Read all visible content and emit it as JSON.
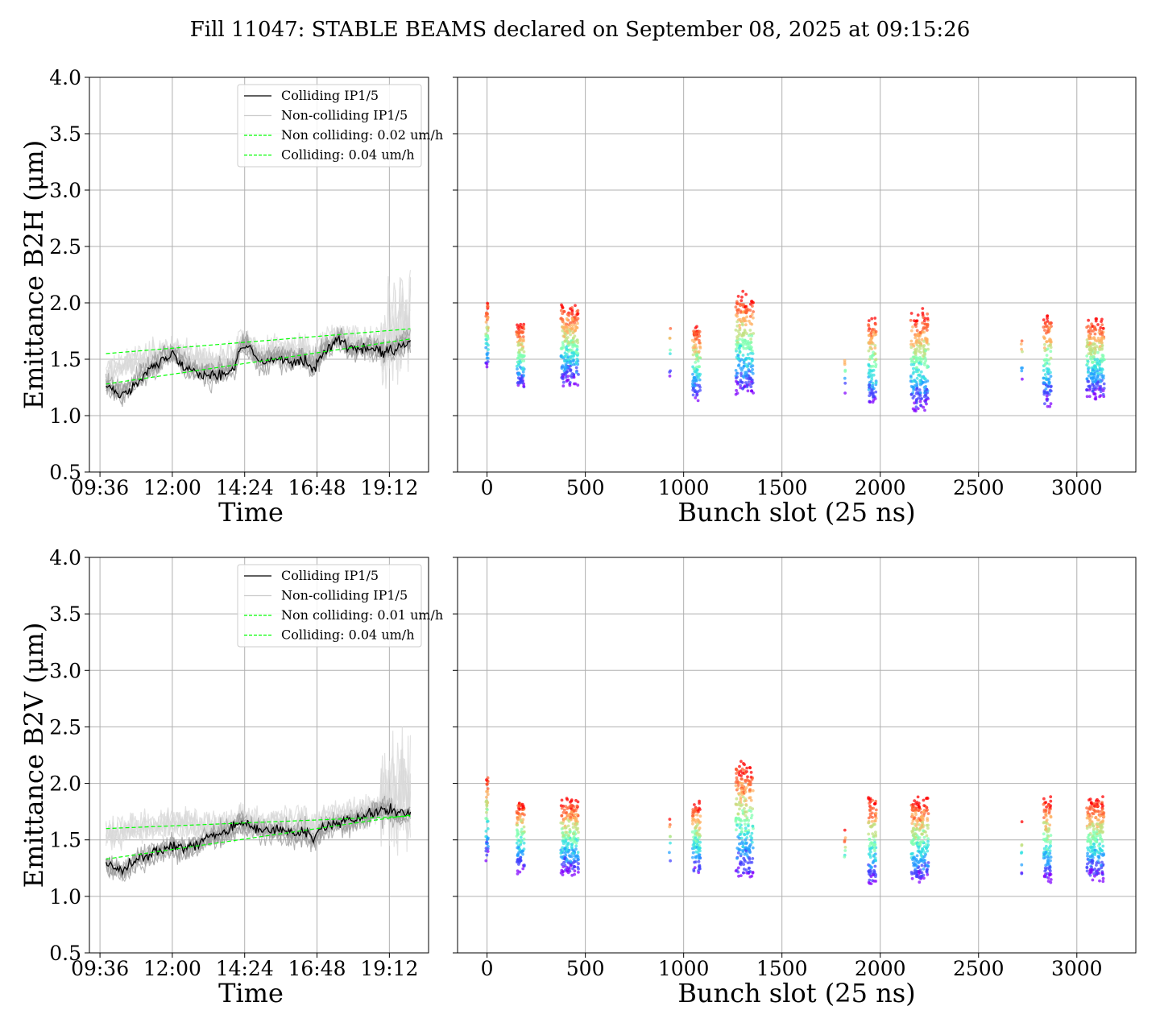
{
  "figure": {
    "title": "Fill 11047: STABLE BEAMS declared on September 08, 2025 at 09:15:26"
  },
  "colors": {
    "colliding": "#000000",
    "non_colliding": "#bbbbbb",
    "fit": "#00ff00",
    "grid": "#b0b0b0",
    "rainbow": [
      "#8000ff",
      "#4040ff",
      "#20a0ff",
      "#30e0e0",
      "#80ffb0",
      "#c0e080",
      "#ffb060",
      "#ff6030",
      "#ff0000"
    ]
  },
  "chart_data": [
    {
      "id": "b2h-time",
      "type": "line",
      "ylabel": "Emittance B2H (μm)",
      "xlabel": "Time",
      "ylim": [
        0.5,
        4.0
      ],
      "yticks": [
        "0.5",
        "1.0",
        "1.5",
        "2.0",
        "2.5",
        "3.0",
        "3.5",
        "4.0"
      ],
      "x_range_hours": [
        9.25,
        20.5
      ],
      "xticks": [
        {
          "label": "09:36",
          "hour": 9.6
        },
        {
          "label": "12:00",
          "hour": 12.0
        },
        {
          "label": "14:24",
          "hour": 14.4
        },
        {
          "label": "16:48",
          "hour": 16.8
        },
        {
          "label": "19:12",
          "hour": 19.2
        }
      ],
      "grid": true,
      "legend_position": "top-right",
      "legend": [
        {
          "label": "Colliding IP1/5",
          "style": "colliding"
        },
        {
          "label": "Non-colliding IP1/5",
          "style": "non_colliding"
        },
        {
          "label": "Non colliding: 0.02 um/h",
          "style": "fit"
        },
        {
          "label": "Colliding: 0.04 um/h",
          "style": "fit"
        }
      ],
      "time_hours": [
        9.8,
        10.3,
        11.0,
        11.5,
        12.0,
        12.5,
        13.0,
        13.5,
        14.0,
        14.3,
        14.6,
        15.0,
        15.5,
        16.0,
        16.3,
        16.7,
        17.0,
        17.5,
        18.0,
        18.5,
        19.0,
        19.5,
        19.9
      ],
      "colliding_median": [
        1.28,
        1.18,
        1.35,
        1.45,
        1.55,
        1.42,
        1.38,
        1.36,
        1.4,
        1.62,
        1.58,
        1.45,
        1.52,
        1.48,
        1.5,
        1.42,
        1.55,
        1.68,
        1.58,
        1.6,
        1.55,
        1.6,
        1.65
      ],
      "non_colliding_median": [
        1.4,
        1.45,
        1.5,
        1.55,
        1.58,
        1.55,
        1.5,
        1.48,
        1.52,
        1.68,
        1.62,
        1.55,
        1.6,
        1.58,
        1.6,
        1.55,
        1.65,
        1.72,
        1.68,
        1.65,
        1.65,
        1.8,
        1.9
      ],
      "fit_non_colliding": {
        "start": 1.55,
        "end": 1.77
      },
      "fit_colliding": {
        "start": 1.28,
        "end": 1.68
      }
    },
    {
      "id": "b2h-bunch",
      "type": "scatter",
      "ylabel": "",
      "xlabel": "Bunch slot (25 ns)",
      "ylim": [
        0.5,
        4.0
      ],
      "xlim": [
        -150,
        3300
      ],
      "xticks": [
        "0",
        "500",
        "1000",
        "1500",
        "2000",
        "2500",
        "3000"
      ],
      "grid": true,
      "clusters": [
        {
          "center": 0,
          "width": 12,
          "count": 45,
          "ymin": 1.36,
          "ymax": 2.05
        },
        {
          "center": 170,
          "width": 40,
          "count": 110,
          "ymin": 1.2,
          "ymax": 1.85
        },
        {
          "center": 420,
          "width": 90,
          "count": 240,
          "ymin": 1.22,
          "ymax": 2.02
        },
        {
          "center": 930,
          "width": 6,
          "count": 8,
          "ymin": 1.3,
          "ymax": 1.88
        },
        {
          "center": 1065,
          "width": 40,
          "count": 110,
          "ymin": 1.1,
          "ymax": 1.85
        },
        {
          "center": 1310,
          "width": 90,
          "count": 240,
          "ymin": 1.14,
          "ymax": 2.13
        },
        {
          "center": 1820,
          "width": 6,
          "count": 8,
          "ymin": 1.18,
          "ymax": 1.6
        },
        {
          "center": 1960,
          "width": 40,
          "count": 110,
          "ymin": 1.03,
          "ymax": 1.92
        },
        {
          "center": 2200,
          "width": 90,
          "count": 240,
          "ymin": 0.98,
          "ymax": 1.98
        },
        {
          "center": 2720,
          "width": 6,
          "count": 8,
          "ymin": 1.28,
          "ymax": 1.76
        },
        {
          "center": 2850,
          "width": 40,
          "count": 110,
          "ymin": 1.03,
          "ymax": 1.95
        },
        {
          "center": 3095,
          "width": 90,
          "count": 240,
          "ymin": 1.12,
          "ymax": 1.9
        }
      ]
    },
    {
      "id": "b2v-time",
      "type": "line",
      "ylabel": "Emittance B2V (μm)",
      "xlabel": "Time",
      "ylim": [
        0.5,
        4.0
      ],
      "yticks": [
        "0.5",
        "1.0",
        "1.5",
        "2.0",
        "2.5",
        "3.0",
        "3.5",
        "4.0"
      ],
      "x_range_hours": [
        9.25,
        20.5
      ],
      "xticks": [
        {
          "label": "09:36",
          "hour": 9.6
        },
        {
          "label": "12:00",
          "hour": 12.0
        },
        {
          "label": "14:24",
          "hour": 14.4
        },
        {
          "label": "16:48",
          "hour": 16.8
        },
        {
          "label": "19:12",
          "hour": 19.2
        }
      ],
      "grid": true,
      "legend_position": "top-right",
      "legend": [
        {
          "label": "Colliding IP1/5",
          "style": "colliding"
        },
        {
          "label": "Non-colliding IP1/5",
          "style": "non_colliding"
        },
        {
          "label": "Non colliding: 0.01 um/h",
          "style": "fit"
        },
        {
          "label": "Colliding: 0.04 um/h",
          "style": "fit"
        }
      ],
      "time_hours": [
        9.8,
        10.3,
        11.0,
        11.5,
        12.0,
        12.5,
        13.0,
        13.5,
        14.0,
        14.3,
        14.6,
        15.0,
        15.5,
        16.0,
        16.3,
        16.7,
        17.0,
        17.5,
        18.0,
        18.5,
        19.0,
        19.5,
        19.9
      ],
      "colliding_median": [
        1.3,
        1.22,
        1.35,
        1.4,
        1.45,
        1.42,
        1.5,
        1.55,
        1.6,
        1.65,
        1.62,
        1.58,
        1.6,
        1.55,
        1.58,
        1.5,
        1.62,
        1.65,
        1.68,
        1.72,
        1.78,
        1.72,
        1.75
      ],
      "non_colliding_median": [
        1.55,
        1.58,
        1.62,
        1.65,
        1.68,
        1.65,
        1.62,
        1.63,
        1.66,
        1.7,
        1.68,
        1.65,
        1.68,
        1.65,
        1.68,
        1.62,
        1.7,
        1.72,
        1.75,
        1.78,
        1.82,
        1.92,
        1.9
      ],
      "fit_non_colliding": {
        "start": 1.6,
        "end": 1.71
      },
      "fit_colliding": {
        "start": 1.33,
        "end": 1.72
      }
    },
    {
      "id": "b2v-bunch",
      "type": "scatter",
      "ylabel": "",
      "xlabel": "Bunch slot (25 ns)",
      "ylim": [
        0.5,
        4.0
      ],
      "xlim": [
        -150,
        3300
      ],
      "xticks": [
        "0",
        "500",
        "1000",
        "1500",
        "2000",
        "2500",
        "3000"
      ],
      "grid": true,
      "clusters": [
        {
          "center": 0,
          "width": 12,
          "count": 45,
          "ymin": 1.25,
          "ymax": 2.15
        },
        {
          "center": 170,
          "width": 40,
          "count": 110,
          "ymin": 1.18,
          "ymax": 1.9
        },
        {
          "center": 420,
          "width": 90,
          "count": 240,
          "ymin": 1.15,
          "ymax": 1.9
        },
        {
          "center": 930,
          "width": 6,
          "count": 8,
          "ymin": 1.25,
          "ymax": 1.72
        },
        {
          "center": 1065,
          "width": 40,
          "count": 110,
          "ymin": 1.16,
          "ymax": 1.88
        },
        {
          "center": 1310,
          "width": 90,
          "count": 240,
          "ymin": 1.1,
          "ymax": 2.25
        },
        {
          "center": 1820,
          "width": 6,
          "count": 8,
          "ymin": 1.17,
          "ymax": 1.6
        },
        {
          "center": 1960,
          "width": 40,
          "count": 110,
          "ymin": 1.06,
          "ymax": 1.92
        },
        {
          "center": 2200,
          "width": 90,
          "count": 240,
          "ymin": 1.08,
          "ymax": 1.92
        },
        {
          "center": 2720,
          "width": 6,
          "count": 8,
          "ymin": 1.12,
          "ymax": 1.74
        },
        {
          "center": 2850,
          "width": 40,
          "count": 110,
          "ymin": 1.08,
          "ymax": 1.92
        },
        {
          "center": 3095,
          "width": 90,
          "count": 240,
          "ymin": 1.1,
          "ymax": 1.92
        }
      ]
    }
  ]
}
